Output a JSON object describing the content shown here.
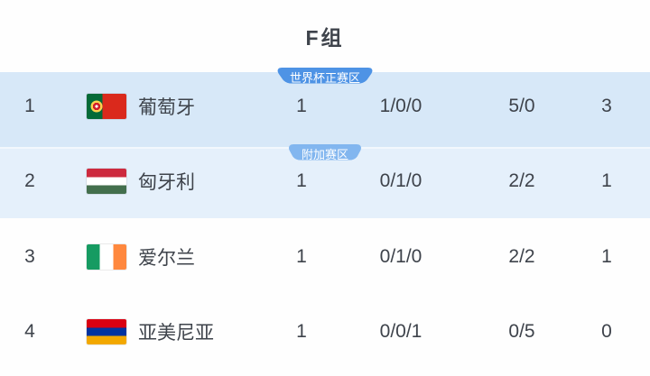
{
  "title": "F组",
  "colors": {
    "badge_primary": "#4e93e5",
    "badge_secondary": "#82b6ef",
    "row_highlight_primary": "#d7e8f8",
    "row_highlight_secondary": "#e5f0fb",
    "text": "#3e434b"
  },
  "rows": [
    {
      "rank": "1",
      "team": "葡萄牙",
      "flag": "portugal",
      "badge": "世界杯正赛区",
      "badge_style": "primary",
      "highlight": "primary",
      "played": "1",
      "wdl": "1/0/0",
      "goals": "5/0",
      "points": "3"
    },
    {
      "rank": "2",
      "team": "匈牙利",
      "flag": "hungary",
      "badge": "附加赛区",
      "badge_style": "secondary",
      "highlight": "secondary",
      "played": "1",
      "wdl": "0/1/0",
      "goals": "2/2",
      "points": "1"
    },
    {
      "rank": "3",
      "team": "爱尔兰",
      "flag": "ireland",
      "badge": null,
      "badge_style": null,
      "highlight": null,
      "played": "1",
      "wdl": "0/1/0",
      "goals": "2/2",
      "points": "1"
    },
    {
      "rank": "4",
      "team": "亚美尼亚",
      "flag": "armenia",
      "badge": null,
      "badge_style": null,
      "highlight": null,
      "played": "1",
      "wdl": "0/0/1",
      "goals": "0/5",
      "points": "0"
    }
  ]
}
